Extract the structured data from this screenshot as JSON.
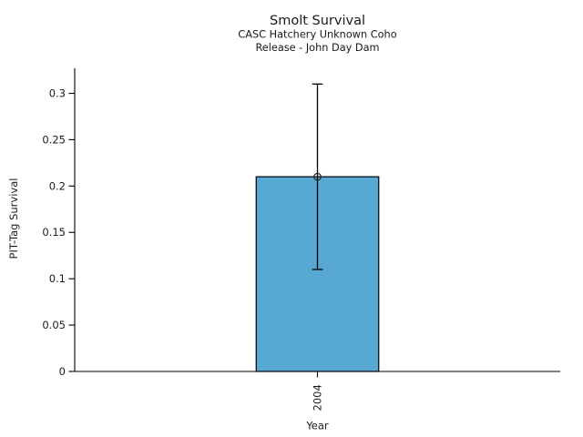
{
  "figure": {
    "background": "#ffffff"
  },
  "chart_data": {
    "type": "bar",
    "title": "Smolt Survival",
    "subtitle_lines": [
      "CASC Hatchery Unknown Coho",
      "Release - John Day Dam"
    ],
    "xlabel": "Year",
    "ylabel": "PIT-Tag Survival",
    "categories": [
      "2004"
    ],
    "values": [
      0.21
    ],
    "error_bars": [
      {
        "lower": 0.11,
        "upper": 0.31
      }
    ],
    "yticks": [
      0,
      0.05,
      0.1,
      0.15,
      0.2,
      0.25,
      0.3
    ],
    "ytick_labels": [
      "0",
      "0.05",
      "0.1",
      "0.15",
      "0.2",
      "0.25",
      "0.3"
    ],
    "ylim": [
      0,
      0.327
    ],
    "grid": false,
    "legend": "none",
    "bar_color": "#58a8d4",
    "bar_edge_color": "#000000",
    "axis_color": "#000000",
    "marker": "open-circle",
    "xtick_rotation": 90
  }
}
